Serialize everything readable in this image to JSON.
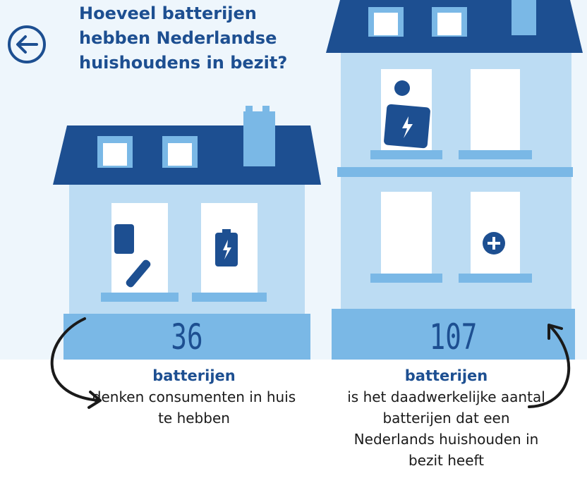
{
  "header": {
    "title": "Hoeveel batterijen hebben Nederlandse huishoudens in bezit?"
  },
  "houses": [
    {
      "value": 36,
      "label": "batterijen",
      "description": "denken consumenten in huis te hebben"
    },
    {
      "value": 107,
      "label": "batterijen",
      "description": "is het daadwerkelijke aantal batterijen dat een Nederlands huishouden in bezit heeft"
    }
  ]
}
